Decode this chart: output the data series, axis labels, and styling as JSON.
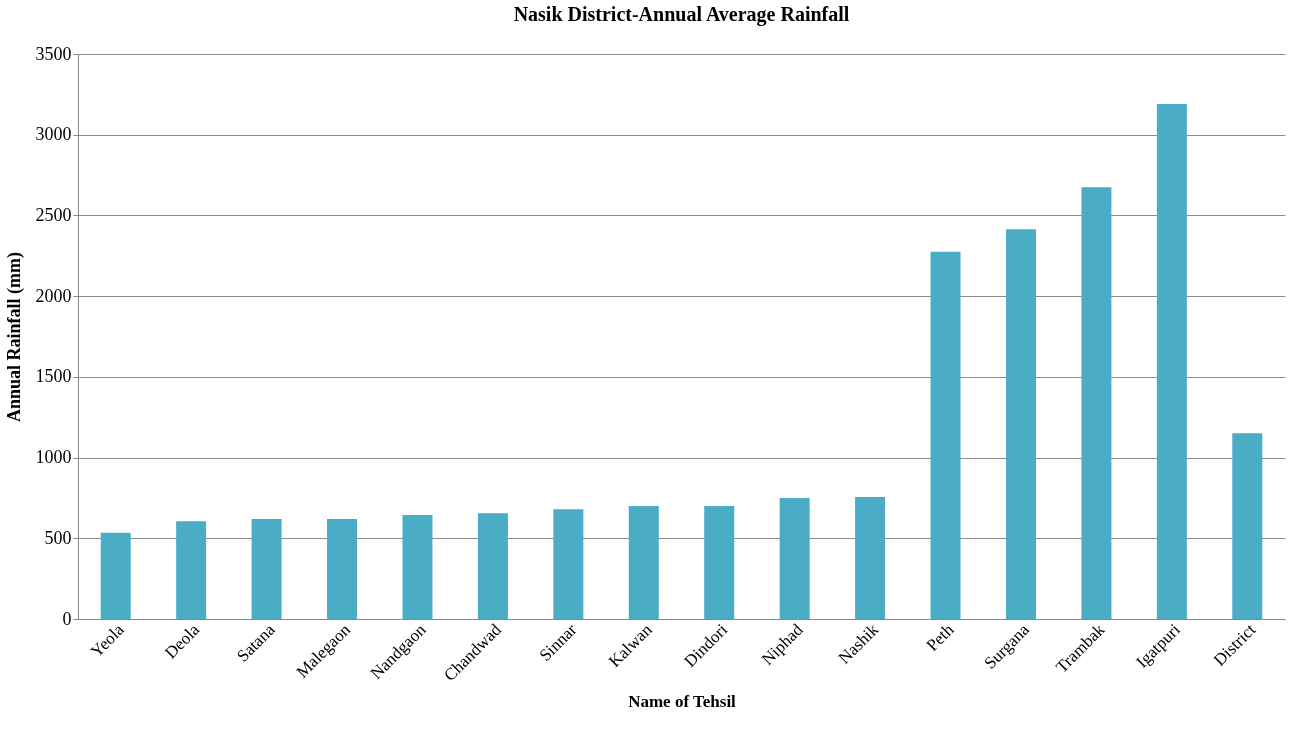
{
  "chart_data": {
    "type": "bar",
    "title": "Nasik District-Annual Average Rainfall",
    "xlabel": "Name of Tehsil",
    "ylabel": "Annual Rainfall (mm)",
    "categories": [
      "Yeola",
      "Deola",
      "Satana",
      "Malegaon",
      "Nandgaon",
      "Chandwad",
      "Sinnar",
      "Kalwan",
      "Dindori",
      "Niphad",
      "Nashik",
      "Peth",
      "Surgana",
      "Trambak",
      "Igatpuri",
      "District"
    ],
    "values": [
      535,
      605,
      620,
      620,
      645,
      655,
      680,
      700,
      700,
      750,
      755,
      2275,
      2415,
      2675,
      3190,
      1150
    ],
    "color": "#4bacc6",
    "ylim": [
      0,
      3500
    ],
    "yticks": [
      0,
      500,
      1000,
      1500,
      2000,
      2500,
      3000,
      3500
    ],
    "grid": "y"
  }
}
